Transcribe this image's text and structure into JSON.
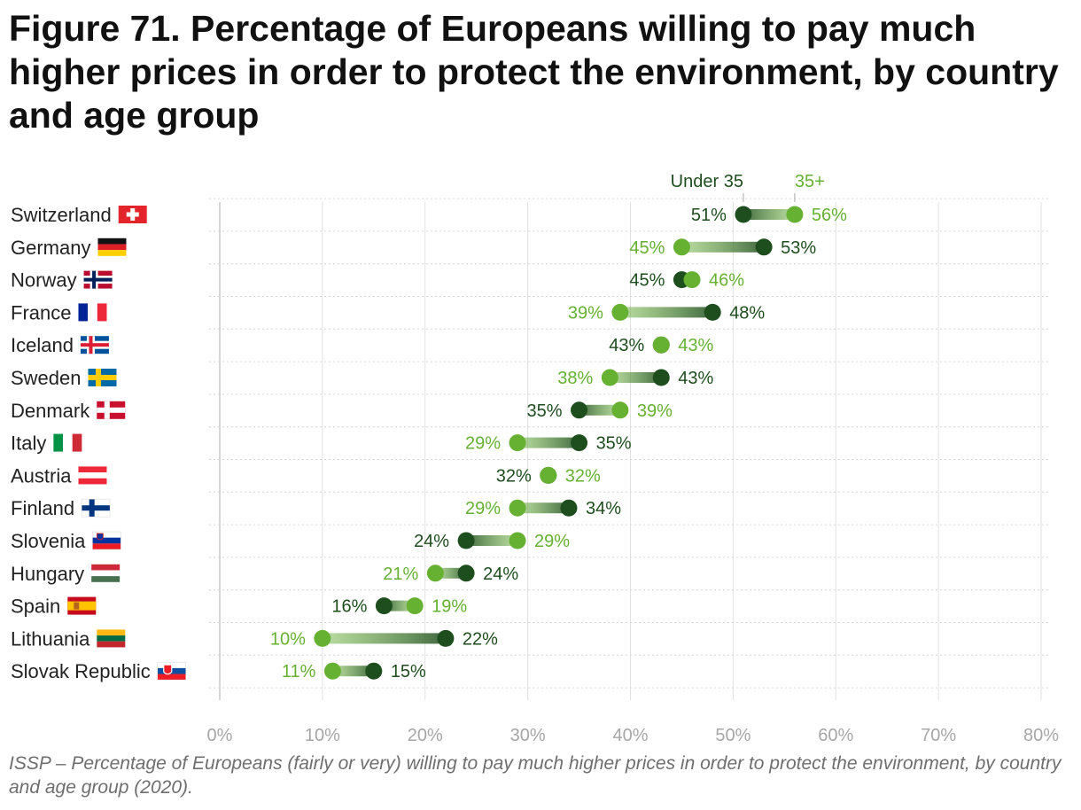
{
  "title": "Figure 71. Percentage of Europeans willing to pay much higher prices in order to protect the environment, by country and age group",
  "caption": "ISSP – Percentage of Europeans (fairly or very) willing to pay much higher prices in order to protect the environment, by country and age group (2020).",
  "colors": {
    "under35": "#1e4d1e",
    "over35": "#66b032"
  },
  "chart_data": {
    "type": "dumbbell",
    "title": "Figure 71. Percentage of Europeans willing to pay much higher prices in order to protect the environment, by country and age group",
    "xlim": [
      0,
      80
    ],
    "x_ticks": [
      "0%",
      "10%",
      "20%",
      "30%",
      "40%",
      "50%",
      "60%",
      "70%",
      "80%"
    ],
    "legend": {
      "under35": "Under 35",
      "over35": "35+"
    },
    "categories": [
      "Switzerland",
      "Germany",
      "Norway",
      "France",
      "Iceland",
      "Sweden",
      "Denmark",
      "Italy",
      "Austria",
      "Finland",
      "Slovenia",
      "Hungary",
      "Spain",
      "Lithuania",
      "Slovak Republic"
    ],
    "series": [
      {
        "name": "Under 35",
        "values": [
          51,
          53,
          45,
          48,
          43,
          43,
          35,
          35,
          32,
          34,
          24,
          24,
          16,
          22,
          15
        ]
      },
      {
        "name": "35+",
        "values": [
          56,
          45,
          46,
          39,
          43,
          38,
          39,
          29,
          32,
          29,
          29,
          21,
          19,
          10,
          11
        ]
      }
    ]
  }
}
